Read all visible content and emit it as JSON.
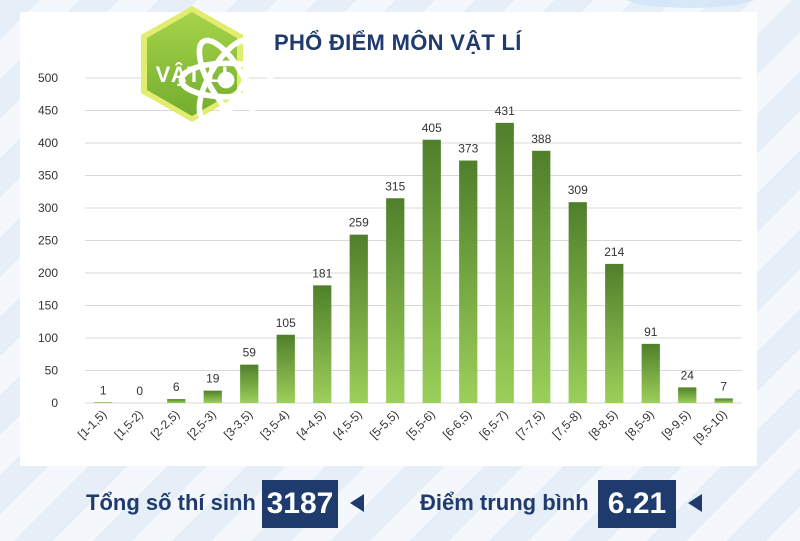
{
  "badge": {
    "label": "VẬT LÍ",
    "icon": "atom-icon"
  },
  "chart_data": {
    "type": "bar",
    "title": "PHỔ ĐIỂM MÔN VẬT LÍ",
    "xlabel": "",
    "ylabel": "",
    "categories": [
      "[1-1,5)",
      "[1,5-2)",
      "[2-2,5)",
      "[2,5-3)",
      "[3-3,5)",
      "[3,5-4)",
      "[4-4,5)",
      "[4,5-5)",
      "[5-5,5)",
      "[5,5-6)",
      "[6-6,5)",
      "[6,5-7)",
      "[7-7,5)",
      "[7,5-8)",
      "[8-8,5)",
      "[8,5-9)",
      "[9-9,5)",
      "[9,5-10)"
    ],
    "values": [
      1,
      0,
      6,
      19,
      59,
      105,
      181,
      259,
      315,
      405,
      373,
      431,
      388,
      309,
      214,
      91,
      24,
      7
    ],
    "yticks": [
      "0",
      "50",
      "100",
      "150",
      "200",
      "250",
      "300",
      "350",
      "400",
      "450",
      "500"
    ],
    "ylim": [
      0,
      500
    ],
    "grid": true,
    "bar_color_top": "#4f7f2a",
    "bar_color_bottom": "#9ccf5a"
  },
  "stats": {
    "total_label": "Tổng số thí sinh",
    "total_value": "3187",
    "avg_label": "Điểm trung bình",
    "avg_value": "6.21"
  },
  "colors": {
    "navy": "#1f3a6d",
    "badge_green": "#8cc63f",
    "badge_border": "#d9e86a"
  }
}
